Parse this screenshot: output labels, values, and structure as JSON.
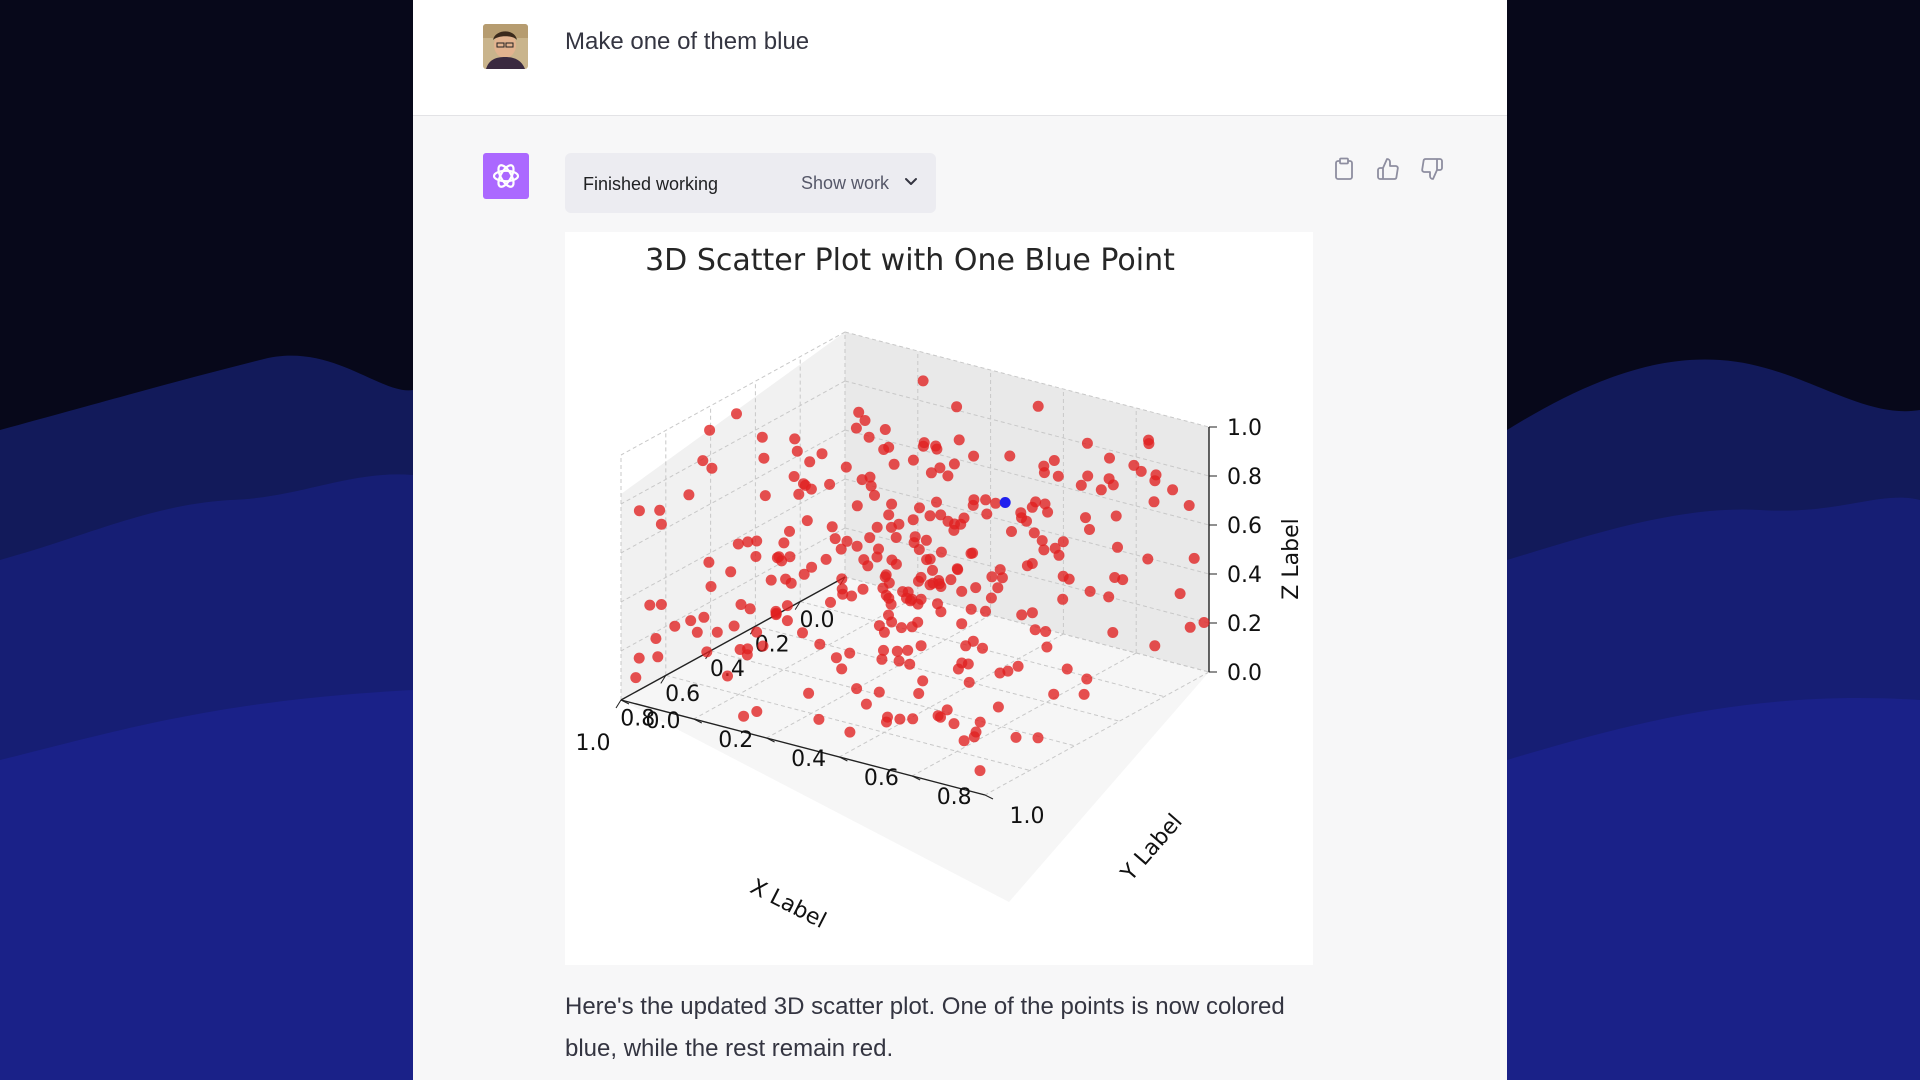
{
  "user_message": {
    "text": "Make one of them blue",
    "avatar_icon": "user-photo"
  },
  "assistant": {
    "avatar_icon": "openai-logo",
    "logo_color": "#ab68ff",
    "work_status": "Finished working",
    "show_work_label": "Show work",
    "actions": [
      "clipboard-icon",
      "thumbs-up-icon",
      "thumbs-down-icon"
    ],
    "reply_text": "Here's the updated 3D scatter plot. One of the points is now colored blue, while the rest remain red."
  },
  "chart_data": {
    "type": "scatter",
    "projection": "3d",
    "title": "3D Scatter Plot with One Blue Point",
    "xlabel": "X Label",
    "ylabel": "Y Label",
    "zlabel": "Z Label",
    "xlim": [
      0,
      1
    ],
    "ylim": [
      0,
      1
    ],
    "zlim": [
      0,
      1
    ],
    "xticks": [
      "0.0",
      "0.2",
      "0.4",
      "0.6",
      "0.8",
      "1.0"
    ],
    "yticks": [
      "0.0",
      "0.2",
      "0.4",
      "0.6",
      "0.8",
      "1.0"
    ],
    "zticks": [
      "0.0",
      "0.2",
      "0.4",
      "0.6",
      "0.8",
      "1.0"
    ],
    "grid": true,
    "point_count": 300,
    "series": [
      {
        "color": "#e02020",
        "count": 299
      },
      {
        "color": "#2020ee",
        "count": 1,
        "point": [
          0.52,
          0.76,
          0.86
        ]
      }
    ]
  }
}
